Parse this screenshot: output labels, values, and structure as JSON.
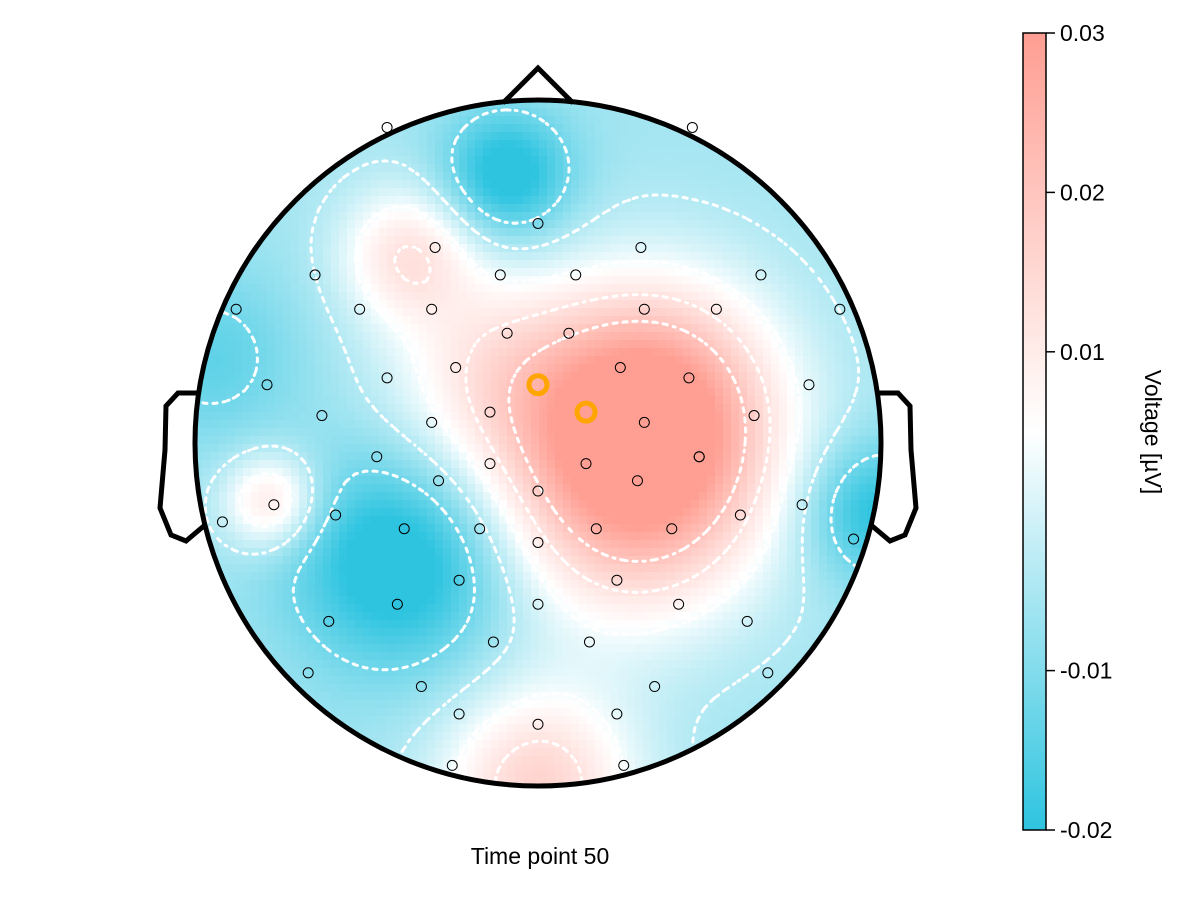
{
  "chart_data": {
    "type": "heatmap",
    "subtype": "eeg-topoplot",
    "caption": "Time point 50",
    "colorbar": {
      "label": "Voltage [µV]",
      "min": -0.02,
      "max": 0.03,
      "ticks": [
        0.03,
        0.02,
        0.01,
        -0.01,
        -0.02
      ],
      "tick_labels": [
        "0.03",
        "0.02",
        "0.01",
        "-0.01",
        "-0.02"
      ],
      "color_low": "#2ec4e0",
      "color_mid": "#ffffff",
      "color_high": "#ff9e92"
    },
    "electrodes": [
      {
        "x": -0.44,
        "y": 0.92
      },
      {
        "x": 0.45,
        "y": 0.92
      },
      {
        "x": 0.0,
        "y": 0.64
      },
      {
        "x": -0.3,
        "y": 0.57
      },
      {
        "x": 0.3,
        "y": 0.57
      },
      {
        "x": -0.65,
        "y": 0.49
      },
      {
        "x": -0.11,
        "y": 0.49
      },
      {
        "x": 0.11,
        "y": 0.49
      },
      {
        "x": 0.65,
        "y": 0.49
      },
      {
        "x": -0.88,
        "y": 0.39
      },
      {
        "x": -0.52,
        "y": 0.39
      },
      {
        "x": -0.31,
        "y": 0.39
      },
      {
        "x": 0.31,
        "y": 0.39
      },
      {
        "x": 0.52,
        "y": 0.39
      },
      {
        "x": 0.88,
        "y": 0.39
      },
      {
        "x": -0.09,
        "y": 0.32
      },
      {
        "x": 0.09,
        "y": 0.32
      },
      {
        "x": -0.24,
        "y": 0.22
      },
      {
        "x": 0.24,
        "y": 0.22
      },
      {
        "x": -0.79,
        "y": 0.17
      },
      {
        "x": -0.44,
        "y": 0.19
      },
      {
        "x": 0.44,
        "y": 0.19
      },
      {
        "x": 0.79,
        "y": 0.17
      },
      {
        "x": -0.63,
        "y": 0.08
      },
      {
        "x": -0.31,
        "y": 0.06
      },
      {
        "x": -0.14,
        "y": 0.09
      },
      {
        "x": 0.31,
        "y": 0.06
      },
      {
        "x": 0.63,
        "y": 0.08
      },
      {
        "x": -0.47,
        "y": -0.04
      },
      {
        "x": 0.47,
        "y": -0.04
      },
      {
        "x": -0.14,
        "y": -0.06
      },
      {
        "x": 0.14,
        "y": -0.06
      },
      {
        "x": 0.47,
        "y": -0.04
      },
      {
        "x": -0.29,
        "y": -0.11
      },
      {
        "x": 0.29,
        "y": -0.11
      },
      {
        "x": -0.77,
        "y": -0.18
      },
      {
        "x": 0.0,
        "y": -0.14
      },
      {
        "x": 0.77,
        "y": -0.18
      },
      {
        "x": -0.59,
        "y": -0.21
      },
      {
        "x": 0.59,
        "y": -0.21
      },
      {
        "x": -0.92,
        "y": -0.23
      },
      {
        "x": -0.39,
        "y": -0.25
      },
      {
        "x": -0.17,
        "y": -0.25
      },
      {
        "x": 0.17,
        "y": -0.25
      },
      {
        "x": 0.39,
        "y": -0.25
      },
      {
        "x": 0.92,
        "y": -0.28
      },
      {
        "x": 0.0,
        "y": -0.29
      },
      {
        "x": -0.23,
        "y": -0.4
      },
      {
        "x": 0.23,
        "y": -0.4
      },
      {
        "x": -0.41,
        "y": -0.47
      },
      {
        "x": 0.0,
        "y": -0.47
      },
      {
        "x": 0.41,
        "y": -0.47
      },
      {
        "x": -0.61,
        "y": -0.52
      },
      {
        "x": -0.13,
        "y": -0.58
      },
      {
        "x": 0.15,
        "y": -0.58
      },
      {
        "x": 0.61,
        "y": -0.52
      },
      {
        "x": -0.67,
        "y": -0.67
      },
      {
        "x": 0.67,
        "y": -0.67
      },
      {
        "x": -0.34,
        "y": -0.71
      },
      {
        "x": 0.34,
        "y": -0.71
      },
      {
        "x": -0.23,
        "y": -0.79
      },
      {
        "x": 0.0,
        "y": -0.82
      },
      {
        "x": 0.23,
        "y": -0.79
      },
      {
        "x": -0.25,
        "y": -0.94
      },
      {
        "x": 0.25,
        "y": -0.94
      }
    ],
    "highlighted": [
      {
        "x": 0.0,
        "y": 0.17,
        "color": "#ffa500"
      },
      {
        "x": 0.14,
        "y": 0.09,
        "color": "#ffa500"
      }
    ],
    "sources": [
      {
        "x": 0.34,
        "y": 0.12,
        "amp": 0.032,
        "sigma": 0.25
      },
      {
        "x": 0.3,
        "y": -0.18,
        "amp": 0.022,
        "sigma": 0.26
      },
      {
        "x": -0.38,
        "y": 0.55,
        "amp": 0.017,
        "sigma": 0.14
      },
      {
        "x": 0.0,
        "y": -1.0,
        "amp": 0.022,
        "sigma": 0.2
      },
      {
        "x": -0.78,
        "y": -0.17,
        "amp": 0.018,
        "sigma": 0.1
      },
      {
        "x": -0.15,
        "y": 0.22,
        "amp": 0.01,
        "sigma": 0.2
      },
      {
        "x": 0.0,
        "y": 0.0,
        "amp": 0.008,
        "sigma": 0.3
      },
      {
        "x": -0.4,
        "y": -0.34,
        "amp": -0.02,
        "sigma": 0.22
      },
      {
        "x": -0.09,
        "y": 0.78,
        "amp": -0.018,
        "sigma": 0.13
      },
      {
        "x": 0.98,
        "y": -0.2,
        "amp": -0.015,
        "sigma": 0.14
      },
      {
        "x": -0.95,
        "y": 0.25,
        "amp": -0.008,
        "sigma": 0.18
      }
    ],
    "baseline": -0.006,
    "contour_levels": [
      -0.012,
      -0.004,
      0.004,
      0.012,
      0.02
    ]
  }
}
